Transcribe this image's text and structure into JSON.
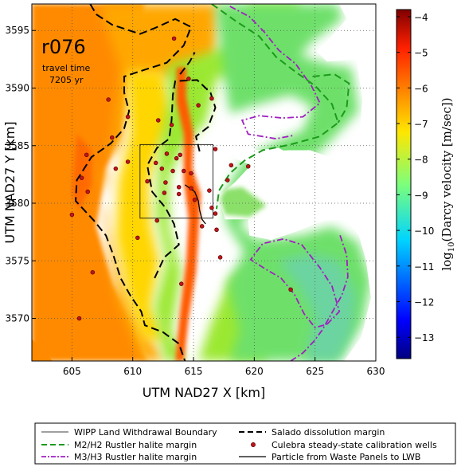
{
  "chart_data": {
    "type": "heatmap",
    "title": "",
    "run_label": "r076",
    "travel_time_label": "travel time",
    "travel_time_value": "7205 yr",
    "xlabel": "UTM NAD27 X [km]",
    "ylabel": "UTM NAD27 Y [km]",
    "xlim": [
      601.7,
      630
    ],
    "ylim": [
      3566.3,
      3597.3
    ],
    "x_ticks": [
      605,
      610,
      615,
      620,
      625,
      630
    ],
    "y_ticks": [
      3570,
      3575,
      3580,
      3585,
      3590,
      3595
    ],
    "grid": true,
    "colorbar": {
      "label_prefix": "log",
      "label_sub": "10",
      "label_rest": "(Darcy velocity  [m/sec])",
      "min": -13.6,
      "max": -3.8,
      "ticks": [
        -4,
        -5,
        -6,
        -7,
        -8,
        -9,
        -10,
        -11,
        -12,
        -13
      ],
      "tick_labels": [
        "−4",
        "−5",
        "−6",
        "−7",
        "−8",
        "−9",
        "−10",
        "−11",
        "−12",
        "−13"
      ]
    },
    "wipp_boundary": {
      "x": [
        610.6,
        616.6
      ],
      "y": [
        3578.7,
        3585.1
      ]
    },
    "wells": [
      [
        608.0,
        3589.0
      ],
      [
        609.6,
        3587.5
      ],
      [
        612.1,
        3587.2
      ],
      [
        613.2,
        3586.8
      ],
      [
        615.4,
        3588.5
      ],
      [
        616.5,
        3589.1
      ],
      [
        606.2,
        3584.2
      ],
      [
        609.6,
        3583.6
      ],
      [
        611.9,
        3583.5
      ],
      [
        612.8,
        3584.3
      ],
      [
        613.9,
        3584.2
      ],
      [
        616.8,
        3584.7
      ],
      [
        618.1,
        3583.3
      ],
      [
        619.5,
        3583.2
      ],
      [
        612.4,
        3583.0
      ],
      [
        613.3,
        3582.8
      ],
      [
        614.2,
        3582.8
      ],
      [
        614.8,
        3582.6
      ],
      [
        611.2,
        3581.9
      ],
      [
        612.7,
        3581.8
      ],
      [
        613.8,
        3581.4
      ],
      [
        614.8,
        3581.3
      ],
      [
        616.3,
        3581.1
      ],
      [
        612.6,
        3580.9
      ],
      [
        613.8,
        3580.8
      ],
      [
        615.1,
        3580.3
      ],
      [
        616.5,
        3579.6
      ],
      [
        616.8,
        3579.1
      ],
      [
        612.0,
        3578.5
      ],
      [
        615.7,
        3578.0
      ],
      [
        616.9,
        3577.7
      ],
      [
        614.0,
        3573.0
      ],
      [
        610.4,
        3577.0
      ],
      [
        608.6,
        3583.0
      ],
      [
        617.2,
        3575.3
      ],
      [
        605.8,
        3582.2
      ],
      [
        606.3,
        3581.0
      ],
      [
        605.0,
        3579.0
      ],
      [
        606.7,
        3574.0
      ],
      [
        613.4,
        3594.3
      ],
      [
        614.6,
        3590.8
      ],
      [
        613.6,
        3583.9
      ],
      [
        608.3,
        3585.7
      ],
      [
        623.0,
        3572.5
      ],
      [
        617.8,
        3582.0
      ],
      [
        605.6,
        3570.0
      ]
    ],
    "salado_margin": [
      [
        606.5,
        3597.3
      ],
      [
        607.0,
        3596.4
      ],
      [
        608.3,
        3595.5
      ],
      [
        610.6,
        3594.7
      ],
      [
        611.8,
        3595.2
      ],
      [
        613.5,
        3596.0
      ],
      [
        614.8,
        3595.3
      ],
      [
        614.2,
        3593.7
      ],
      [
        612.8,
        3592.2
      ],
      [
        611.0,
        3591.6
      ],
      [
        609.3,
        3591.0
      ],
      [
        609.3,
        3589.6
      ],
      [
        609.7,
        3588.0
      ],
      [
        609.3,
        3586.5
      ],
      [
        608.2,
        3585.2
      ],
      [
        606.6,
        3584.0
      ],
      [
        605.4,
        3582.0
      ],
      [
        605.3,
        3580.2
      ],
      [
        606.8,
        3578.5
      ],
      [
        607.8,
        3577.2
      ],
      [
        608.4,
        3575.5
      ],
      [
        609.0,
        3573.5
      ],
      [
        609.8,
        3572.0
      ],
      [
        610.7,
        3570.6
      ],
      [
        611.0,
        3569.4
      ],
      [
        612.5,
        3568.8
      ],
      [
        613.8,
        3567.8
      ],
      [
        614.3,
        3566.3
      ]
    ],
    "salado_margin_2": [
      [
        611.8,
        3573.5
      ],
      [
        612.6,
        3575.3
      ],
      [
        613.8,
        3576.4
      ],
      [
        613.4,
        3578.2
      ],
      [
        612.7,
        3579.6
      ],
      [
        611.6,
        3581.0
      ],
      [
        611.2,
        3583.3
      ],
      [
        612.0,
        3584.8
      ],
      [
        613.0,
        3585.6
      ],
      [
        613.2,
        3587.2
      ],
      [
        613.3,
        3589.4
      ],
      [
        613.5,
        3590.6
      ],
      [
        615.3,
        3590.7
      ],
      [
        616.4,
        3589.6
      ],
      [
        616.8,
        3588.3
      ],
      [
        616.2,
        3586.6
      ],
      [
        615.2,
        3585.8
      ],
      [
        615.5,
        3584.5
      ]
    ],
    "salado_margin_3": [
      [
        613.9,
        3591.2
      ],
      [
        614.7,
        3592.3
      ],
      [
        615.1,
        3593.1
      ]
    ],
    "m2h2_margin": [
      [
        616.5,
        3597.3
      ],
      [
        618.5,
        3595.8
      ],
      [
        620.4,
        3594.5
      ],
      [
        621.8,
        3592.7
      ],
      [
        623.4,
        3591.4
      ],
      [
        625.0,
        3590.2
      ],
      [
        626.4,
        3588.6
      ],
      [
        626.9,
        3587.0
      ],
      [
        625.4,
        3585.8
      ],
      [
        623.0,
        3585.1
      ],
      [
        620.7,
        3584.6
      ],
      [
        619.2,
        3583.7
      ],
      [
        618.0,
        3582.6
      ],
      [
        617.1,
        3581.1
      ],
      [
        616.9,
        3579.5
      ]
    ],
    "m2h2_margin_2": [
      [
        624.8,
        3591.0
      ],
      [
        626.6,
        3591.2
      ],
      [
        627.8,
        3590.4
      ],
      [
        627.6,
        3588.3
      ],
      [
        626.9,
        3587.0
      ]
    ],
    "m3h3_margin": [
      [
        618.0,
        3597.1
      ],
      [
        619.6,
        3596.2
      ],
      [
        620.8,
        3594.9
      ],
      [
        622.0,
        3593.3
      ],
      [
        623.4,
        3592.1
      ],
      [
        624.7,
        3590.2
      ],
      [
        625.4,
        3588.7
      ],
      [
        624.0,
        3587.5
      ],
      [
        622.3,
        3587.4
      ],
      [
        620.4,
        3587.6
      ],
      [
        619.0,
        3587.2
      ],
      [
        619.5,
        3586.0
      ],
      [
        621.8,
        3585.6
      ],
      [
        623.3,
        3585.9
      ]
    ],
    "m3h3_margin_2": [
      [
        626.0,
        3569.5
      ],
      [
        627.0,
        3570.6
      ],
      [
        626.4,
        3572.8
      ],
      [
        625.4,
        3574.4
      ],
      [
        623.9,
        3576.4
      ],
      [
        622.4,
        3576.9
      ],
      [
        620.7,
        3576.5
      ],
      [
        619.7,
        3575.1
      ],
      [
        620.9,
        3574.3
      ],
      [
        622.2,
        3573.5
      ],
      [
        623.3,
        3572.1
      ],
      [
        624.1,
        3570.4
      ],
      [
        625.0,
        3569.2
      ],
      [
        626.0,
        3569.5
      ]
    ],
    "m3h3_margin_3": [
      [
        623.0,
        3566.3
      ],
      [
        624.0,
        3567.0
      ],
      [
        624.9,
        3568.0
      ],
      [
        625.6,
        3569.0
      ],
      [
        626.4,
        3570.5
      ],
      [
        627.2,
        3572.0
      ],
      [
        627.7,
        3573.6
      ],
      [
        627.6,
        3575.5
      ],
      [
        627.0,
        3577.4
      ]
    ],
    "particle_path": [
      [
        614.3,
        3581.6
      ],
      [
        615.1,
        3581.0
      ],
      [
        615.4,
        3580.2
      ],
      [
        615.5,
        3579.4
      ],
      [
        615.7,
        3578.6
      ],
      [
        616.0,
        3578.2
      ]
    ],
    "legend": {
      "items": [
        {
          "label": "WIPP Land Withdrawal Boundary",
          "style": "thin"
        },
        {
          "label": "Salado dissolution margin",
          "style": "black-dash"
        },
        {
          "label": "M2/H2 Rustler halite margin",
          "style": "green-dash"
        },
        {
          "label": "Culebra steady-state calibration wells",
          "style": "dot"
        },
        {
          "label": "M3/H3 Rustler halite margin",
          "style": "purple-dashdot"
        },
        {
          "label": "Particle from Waste Panels to LWB",
          "style": "black-solid"
        }
      ]
    },
    "colors": {
      "salado": "#000000",
      "m2h2": "#1c9a1c",
      "m3h3": "#a020c0",
      "wells": "#c0141c",
      "wells_edge": "#5a0000"
    }
  }
}
